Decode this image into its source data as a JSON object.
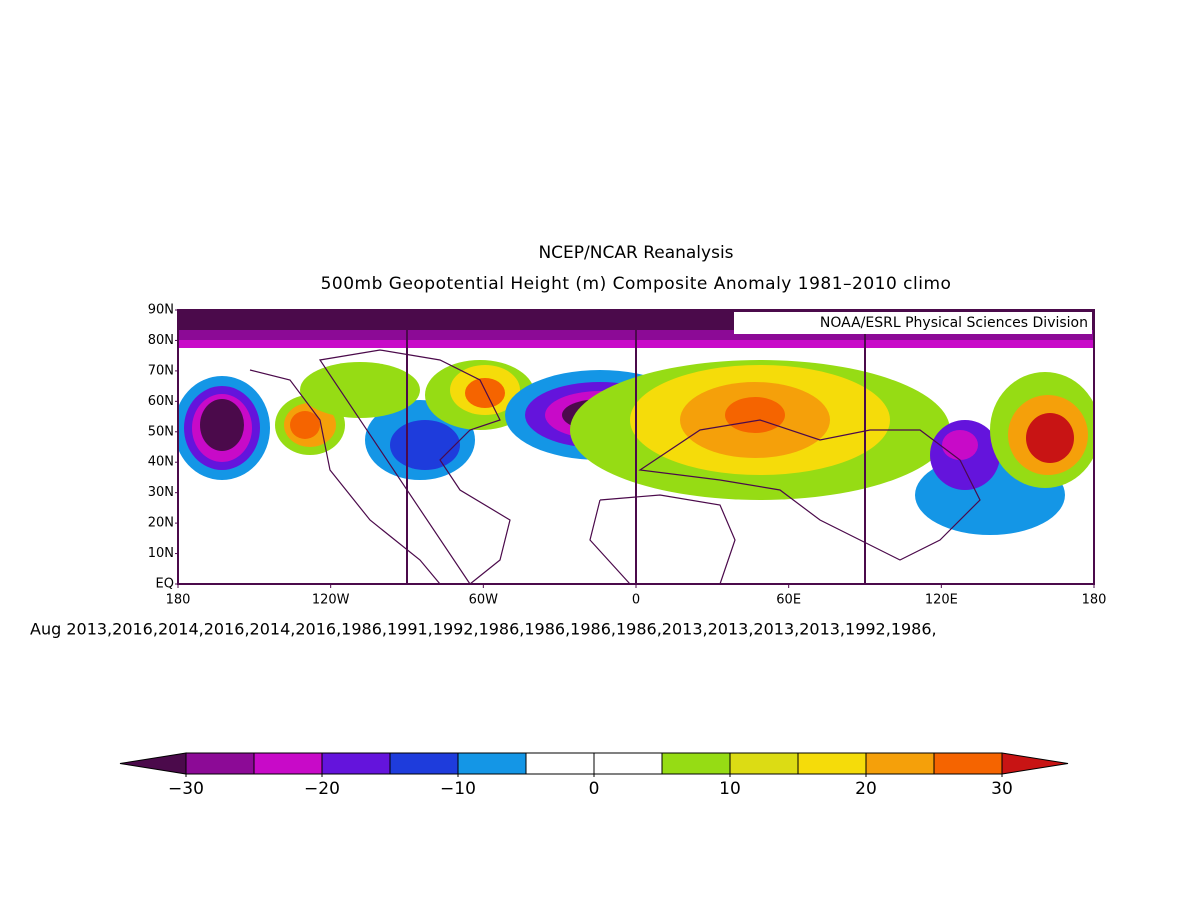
{
  "title": "NCEP/NCAR Reanalysis",
  "subtitle": "500mb Geopotential Height (m) Composite Anomaly 1981–2010 climo",
  "credit": "NOAA/ESRL Physical Sciences Division",
  "map": {
    "lat_ticks": [
      "90N",
      "80N",
      "70N",
      "60N",
      "50N",
      "40N",
      "30N",
      "20N",
      "10N",
      "EQ"
    ],
    "lon_ticks": [
      "180",
      "120W",
      "60W",
      "0",
      "60E",
      "120E",
      "180"
    ]
  },
  "caption": "Aug 2013,2016,2014,2016,2014,2016,1986,1991,1992,1986,1986,1986,1986,2013,2013,2013,2013,1992,1986,",
  "colorbar": {
    "lim": [
      -30,
      30
    ],
    "levels": [
      -30,
      -25,
      -20,
      -15,
      -10,
      -5,
      0,
      5,
      10,
      15,
      20,
      25,
      30
    ],
    "colors": [
      "#4b0a4b",
      "#8c0a96",
      "#c80ac8",
      "#6414dc",
      "#1e3cdc",
      "#1496e6",
      "#ffffff",
      "#ffffff",
      "#96dc14",
      "#dcdc14",
      "#f5dc0a",
      "#f5a00a",
      "#f56400",
      "#c81414"
    ],
    "ticks": [
      {
        "value": -30,
        "label": "−30"
      },
      {
        "value": -20,
        "label": "−20"
      },
      {
        "value": -10,
        "label": "−10"
      },
      0,
      10,
      20,
      30
    ]
  }
}
